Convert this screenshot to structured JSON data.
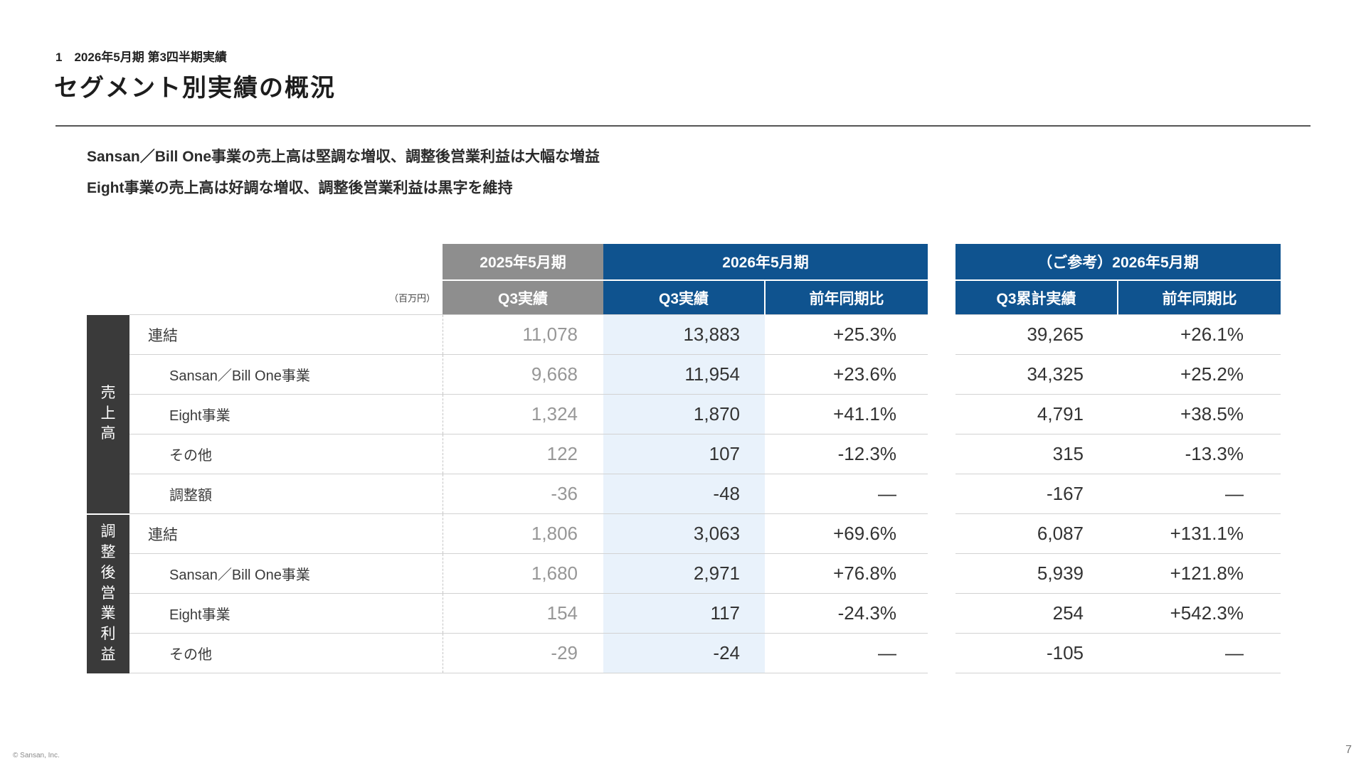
{
  "page": {
    "eyebrow": "1　2026年5月期 第3四半期実績",
    "title": "セグメント別実績の概況",
    "subtitle_line1": "Sansan／Bill One事業の売上高は堅調な増収、調整後営業利益は大幅な増益",
    "subtitle_line2": "Eight事業の売上高は好調な増収、調整後営業利益は黒字を維持",
    "footer_copyright": "© Sansan, Inc.",
    "page_number": "7"
  },
  "table": {
    "unit_label": "（百万円）",
    "col_groups": {
      "prev_period": "2025年5月期",
      "curr_period": "2026年5月期",
      "ref_period": "（ご参考）2026年5月期"
    },
    "sub_headers": {
      "prev_q3": "Q3実績",
      "curr_q3": "Q3実績",
      "curr_yoy": "前年同期比",
      "ref_cum": "Q3累計実績",
      "ref_yoy": "前年同期比"
    },
    "groups": [
      {
        "label": "売上高",
        "rows": [
          {
            "label": "連結",
            "indent": false,
            "prev": "11,078",
            "curr": "13,883",
            "yoy": "+25.3%",
            "ref": "39,265",
            "ref_yoy": "+26.1%"
          },
          {
            "label": "Sansan／Bill One事業",
            "indent": true,
            "prev": "9,668",
            "curr": "11,954",
            "yoy": "+23.6%",
            "ref": "34,325",
            "ref_yoy": "+25.2%"
          },
          {
            "label": "Eight事業",
            "indent": true,
            "prev": "1,324",
            "curr": "1,870",
            "yoy": "+41.1%",
            "ref": "4,791",
            "ref_yoy": "+38.5%"
          },
          {
            "label": "その他",
            "indent": true,
            "prev": "122",
            "curr": "107",
            "yoy": "-12.3%",
            "ref": "315",
            "ref_yoy": "-13.3%"
          },
          {
            "label": "調整額",
            "indent": true,
            "prev": "-36",
            "curr": "-48",
            "yoy": "—",
            "ref": "-167",
            "ref_yoy": "—"
          }
        ]
      },
      {
        "label": "調整後営業利益",
        "rows": [
          {
            "label": "連結",
            "indent": false,
            "prev": "1,806",
            "curr": "3,063",
            "yoy": "+69.6%",
            "ref": "6,087",
            "ref_yoy": "+131.1%"
          },
          {
            "label": "Sansan／Bill One事業",
            "indent": true,
            "prev": "1,680",
            "curr": "2,971",
            "yoy": "+76.8%",
            "ref": "5,939",
            "ref_yoy": "+121.8%"
          },
          {
            "label": "Eight事業",
            "indent": true,
            "prev": "154",
            "curr": "117",
            "yoy": "-24.3%",
            "ref": "254",
            "ref_yoy": "+542.3%"
          },
          {
            "label": "その他",
            "indent": true,
            "prev": "-29",
            "curr": "-24",
            "yoy": "—",
            "ref": "-105",
            "ref_yoy": "—"
          }
        ]
      }
    ]
  },
  "colors": {
    "header_blue": "#0f538f",
    "header_gray": "#8e8e8e",
    "group_label_dark": "#3a3a3a",
    "current_q3_highlight": "#e9f2fb",
    "prev_year_text": "#979797"
  }
}
